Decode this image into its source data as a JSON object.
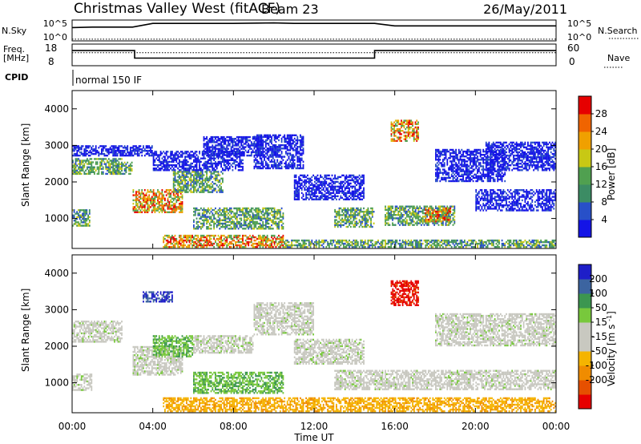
{
  "header": {
    "title": "Christmas Valley West (fitACF)",
    "beam": "Beam 23",
    "date": "26/May/2011"
  },
  "colors": {
    "power_scale": [
      "#1414e6",
      "#2850c8",
      "#3c8c64",
      "#50a050",
      "#c8c814",
      "#f0a000",
      "#f06400",
      "#e60000"
    ],
    "velocity_scale": [
      "#1e1ec8",
      "#3c64a0",
      "#3c9650",
      "#78c83c",
      "#c8c8c0",
      "#c8c8c0",
      "#f5b400",
      "#f08c00",
      "#e65000",
      "#e60000"
    ],
    "ground_scatter": "#c8c8c0"
  },
  "chart_data": [
    {
      "type": "line",
      "name": "top-panel-nsky-nsearch",
      "left_labels": [
        "N.Sky",
        "10^5",
        "10^0"
      ],
      "right_labels": [
        "10^5",
        "10^0",
        "N.Search"
      ],
      "x": [
        0,
        1,
        2,
        3,
        4,
        6,
        8,
        10,
        11,
        12,
        14,
        15,
        16,
        18,
        20,
        22,
        24
      ],
      "solid_log": [
        3.2,
        3.3,
        3.3,
        3.3,
        4.2,
        4.2,
        4.2,
        4.3,
        4.2,
        4.2,
        4.2,
        4.2,
        3.6,
        3.6,
        3.6,
        3.6,
        3.6
      ],
      "dotted_log": [
        0.4,
        0.4,
        0.4,
        0.4,
        0.4,
        0.4,
        0.4,
        0.4,
        0.4,
        0.4,
        0.4,
        0.4,
        0.4,
        0.4,
        0.4,
        0.4,
        0.4
      ],
      "ylim": [
        0,
        5
      ],
      "xlim": [
        0,
        24
      ]
    },
    {
      "type": "line",
      "name": "frequency-nave-panel",
      "left_labels": [
        "Freq.",
        "[MHz]",
        "18",
        "8"
      ],
      "right_labels": [
        "60",
        "0",
        "Nave"
      ],
      "x": [
        0,
        3.1,
        3.1,
        15,
        15,
        24
      ],
      "freq_mhz": [
        15,
        15,
        11.5,
        11.5,
        15,
        15
      ],
      "nave_dotted": [
        36,
        36,
        36,
        36,
        36,
        36
      ],
      "ylim_left": [
        8,
        18
      ],
      "ylim_right": [
        0,
        60
      ],
      "xlim": [
        0,
        24
      ]
    },
    {
      "type": "table",
      "name": "cpid-row",
      "label": "CPID",
      "segments": [
        {
          "start": 0,
          "end": 24,
          "text": "normal 150 IF"
        }
      ]
    },
    {
      "type": "heatmap",
      "name": "power-panel",
      "ylabel": "Slant Range [km]",
      "yticks": [
        1000,
        2000,
        3000,
        4000
      ],
      "ylim": [
        180,
        4500
      ],
      "xlim": [
        0,
        24
      ],
      "colorbar": {
        "label": "Power [dB]",
        "ticks": [
          4,
          8,
          12,
          16,
          20,
          24,
          28
        ],
        "range": [
          0,
          32
        ]
      },
      "regions": [
        {
          "t0": 0.0,
          "t1": 2.5,
          "r0": 2200,
          "r1": 2650,
          "level": "mid"
        },
        {
          "t0": 0.0,
          "t1": 4.0,
          "r0": 2700,
          "r1": 3000,
          "level": "low"
        },
        {
          "t0": 0.0,
          "t1": 0.9,
          "r0": 780,
          "r1": 1250,
          "level": "mid"
        },
        {
          "t0": 2.0,
          "t1": 3.0,
          "r0": 2200,
          "r1": 2550,
          "level": "mid"
        },
        {
          "t0": 3.0,
          "t1": 5.5,
          "r0": 1150,
          "r1": 1800,
          "level": "high"
        },
        {
          "t0": 5.0,
          "t1": 7.5,
          "r0": 1700,
          "r1": 2300,
          "level": "mid"
        },
        {
          "t0": 4.0,
          "t1": 8.5,
          "r0": 2300,
          "r1": 2850,
          "level": "low"
        },
        {
          "t0": 6.5,
          "t1": 9.5,
          "r0": 2700,
          "r1": 3250,
          "level": "low"
        },
        {
          "t0": 9.0,
          "t1": 11.5,
          "r0": 2350,
          "r1": 3300,
          "level": "low"
        },
        {
          "t0": 6.0,
          "t1": 10.5,
          "r0": 700,
          "r1": 1300,
          "level": "mid"
        },
        {
          "t0": 4.5,
          "t1": 10.5,
          "r0": 200,
          "r1": 550,
          "level": "high"
        },
        {
          "t0": 10.5,
          "t1": 24.0,
          "r0": 200,
          "r1": 420,
          "level": "mid"
        },
        {
          "t0": 11.0,
          "t1": 14.5,
          "r0": 1500,
          "r1": 2200,
          "level": "low"
        },
        {
          "t0": 13.0,
          "t1": 15.0,
          "r0": 750,
          "r1": 1300,
          "level": "mid"
        },
        {
          "t0": 15.5,
          "t1": 19.0,
          "r0": 800,
          "r1": 1350,
          "level": "mid"
        },
        {
          "t0": 17.5,
          "t1": 18.8,
          "r0": 900,
          "r1": 1300,
          "level": "high"
        },
        {
          "t0": 15.8,
          "t1": 17.2,
          "r0": 3100,
          "r1": 3700,
          "level": "high"
        },
        {
          "t0": 18.0,
          "t1": 21.5,
          "r0": 2000,
          "r1": 2900,
          "level": "low"
        },
        {
          "t0": 20.0,
          "t1": 24.0,
          "r0": 1200,
          "r1": 1800,
          "level": "low"
        },
        {
          "t0": 20.5,
          "t1": 24.0,
          "r0": 2300,
          "r1": 3100,
          "level": "low"
        }
      ]
    },
    {
      "type": "heatmap",
      "name": "velocity-panel",
      "ylabel": "Slant Range [km]",
      "xlabel": "Time UT",
      "xticks": [
        "00:00",
        "04:00",
        "08:00",
        "12:00",
        "16:00",
        "20:00",
        "00:00"
      ],
      "yticks": [
        1000,
        2000,
        3000,
        4000
      ],
      "ylim": [
        180,
        4500
      ],
      "xlim": [
        0,
        24
      ],
      "colorbar": {
        "label": "Velocity [m s^-1]",
        "ticks": [
          200,
          100,
          50,
          15,
          -15,
          -50,
          -100,
          -200
        ],
        "range": [
          -250,
          250
        ]
      },
      "regions": [
        {
          "t0": 0.0,
          "t1": 2.5,
          "r0": 2100,
          "r1": 2700,
          "level": "gs"
        },
        {
          "t0": 0.0,
          "t1": 1.0,
          "r0": 780,
          "r1": 1250,
          "level": "gs"
        },
        {
          "t0": 3.0,
          "t1": 5.5,
          "r0": 1200,
          "r1": 2000,
          "level": "gs"
        },
        {
          "t0": 4.0,
          "t1": 6.0,
          "r0": 1700,
          "r1": 2300,
          "level": "pos_low"
        },
        {
          "t0": 6.0,
          "t1": 10.5,
          "r0": 700,
          "r1": 1300,
          "level": "pos_low"
        },
        {
          "t0": 6.0,
          "t1": 9.0,
          "r0": 1800,
          "r1": 2300,
          "level": "gs"
        },
        {
          "t0": 4.5,
          "t1": 24.0,
          "r0": 200,
          "r1": 600,
          "level": "neg_low"
        },
        {
          "t0": 9.0,
          "t1": 12.0,
          "r0": 2300,
          "r1": 3200,
          "level": "gs"
        },
        {
          "t0": 11.0,
          "t1": 14.5,
          "r0": 1500,
          "r1": 2200,
          "level": "gs"
        },
        {
          "t0": 13.0,
          "t1": 24.0,
          "r0": 800,
          "r1": 1350,
          "level": "gs"
        },
        {
          "t0": 15.8,
          "t1": 17.2,
          "r0": 3100,
          "r1": 3800,
          "level": "neg_high"
        },
        {
          "t0": 18.0,
          "t1": 24.0,
          "r0": 2000,
          "r1": 2900,
          "level": "gs"
        },
        {
          "t0": 3.5,
          "t1": 5.0,
          "r0": 3200,
          "r1": 3500,
          "level": "pos_high"
        }
      ]
    }
  ]
}
